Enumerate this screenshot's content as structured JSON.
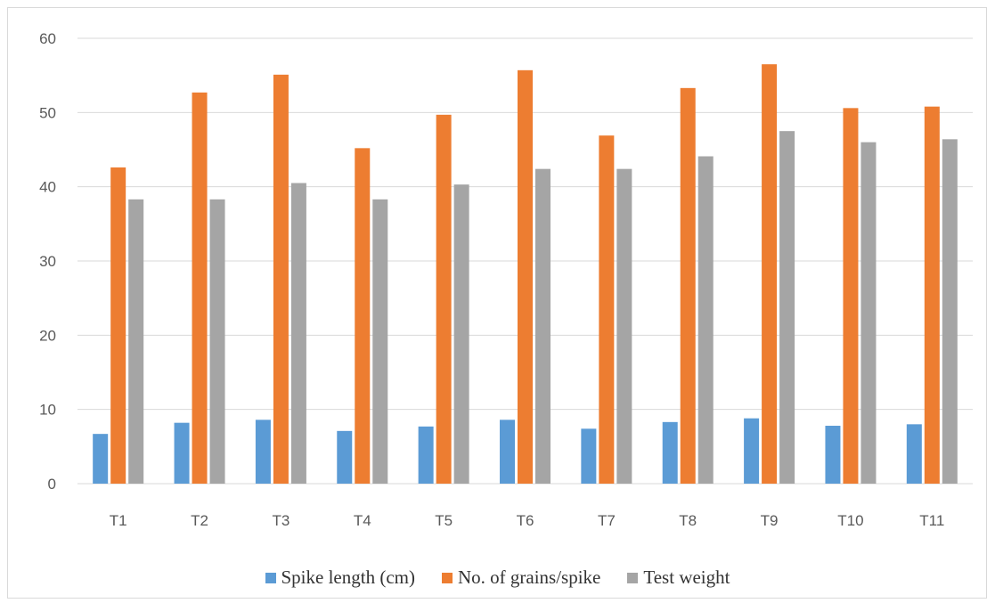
{
  "chart_data": {
    "type": "bar",
    "categories": [
      "T1",
      "T2",
      "T3",
      "T4",
      "T5",
      "T6",
      "T7",
      "T8",
      "T9",
      "T10",
      "T11"
    ],
    "series": [
      {
        "name": "Spike length (cm)",
        "color": "#5b9bd5",
        "values": [
          6.7,
          8.2,
          8.6,
          7.1,
          7.7,
          8.6,
          7.4,
          8.3,
          8.8,
          7.8,
          8.0
        ]
      },
      {
        "name": "No. of grains/spike",
        "color": "#ed7d31",
        "values": [
          42.6,
          52.7,
          55.1,
          45.2,
          49.7,
          55.7,
          46.9,
          53.3,
          56.5,
          50.6,
          50.8
        ]
      },
      {
        "name": "Test weight",
        "color": "#a5a5a5",
        "values": [
          38.3,
          38.3,
          40.5,
          38.3,
          40.3,
          42.4,
          42.4,
          44.1,
          47.5,
          46.0,
          46.4
        ]
      }
    ],
    "ylim": [
      0,
      60
    ],
    "yticks": [
      0,
      10,
      20,
      30,
      40,
      50,
      60
    ],
    "grid": true,
    "legend_position": "bottom"
  }
}
